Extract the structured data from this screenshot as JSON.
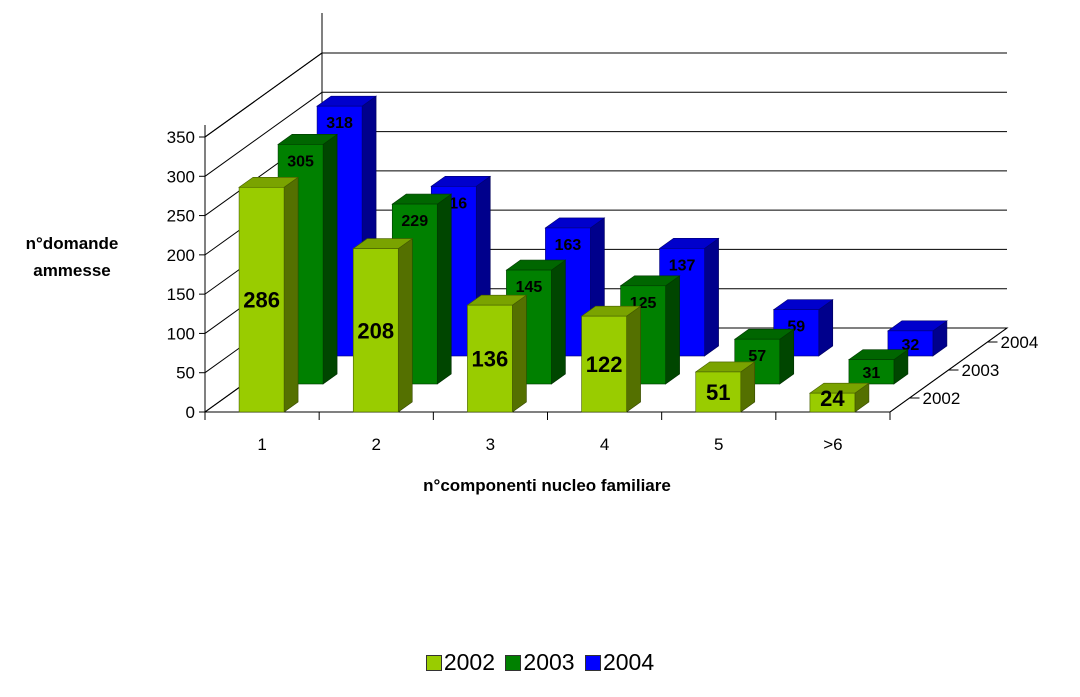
{
  "chart_data": {
    "type": "bar",
    "subtype": "3d-grouped",
    "categories": [
      "1",
      "2",
      "3",
      "4",
      "5",
      ">6"
    ],
    "series": [
      {
        "name": "2002",
        "values": [
          286,
          208,
          136,
          122,
          51,
          24
        ],
        "color": "#99CC00"
      },
      {
        "name": "2003",
        "values": [
          305,
          229,
          145,
          125,
          57,
          31
        ],
        "color": "#008000"
      },
      {
        "name": "2004",
        "values": [
          318,
          216,
          163,
          137,
          59,
          32
        ],
        "color": "#0000FF"
      }
    ],
    "xlabel": "n°componenti nucleo familiare",
    "ylabel": "n°domande ammesse",
    "ylabel_lines": [
      "n°domande",
      "ammesse"
    ],
    "ylim": [
      0,
      350
    ],
    "yticks": [
      0,
      50,
      100,
      150,
      200,
      250,
      300,
      350
    ],
    "grid": true,
    "legend_position": "bottom"
  }
}
